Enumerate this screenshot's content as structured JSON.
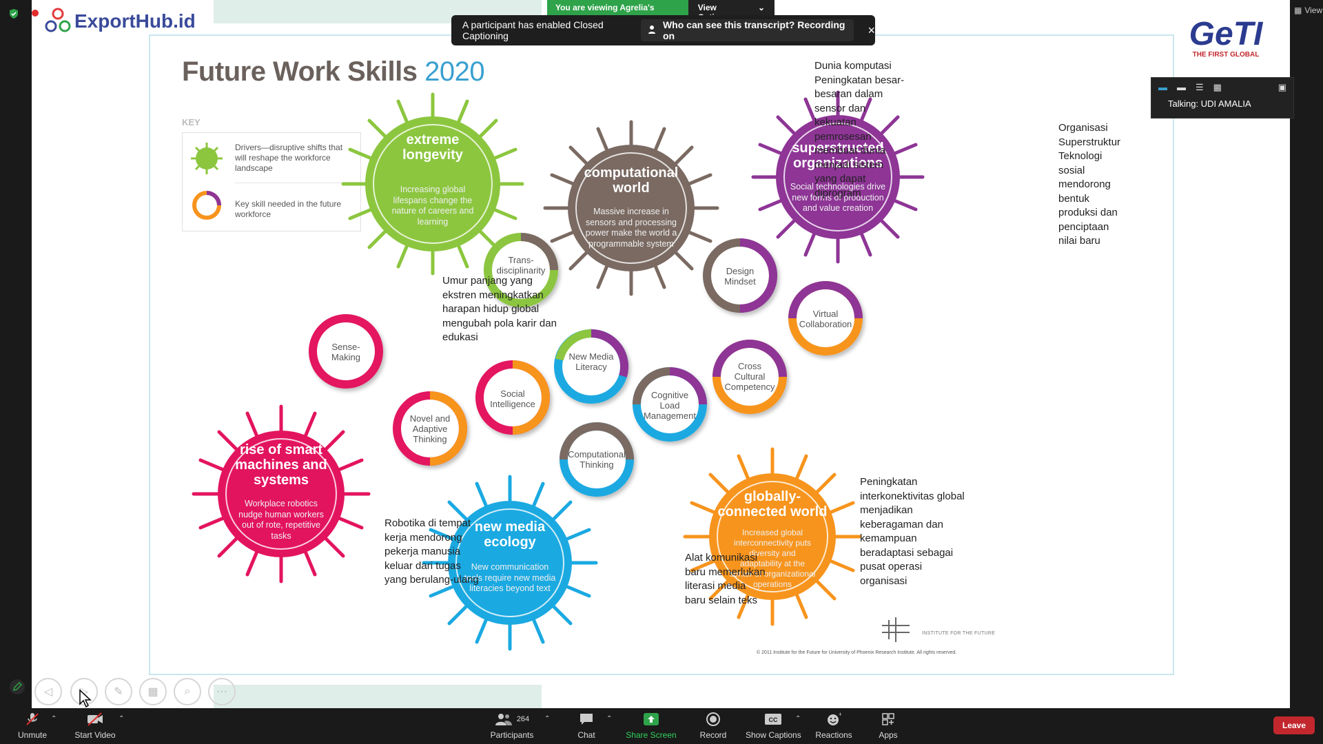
{
  "share_banner": {
    "viewing": "You are viewing Agrelia's screen",
    "view_options": "View Options"
  },
  "cc_banner": {
    "message": "A participant has enabled Closed Captioning",
    "question": "Who can see this transcript? Recording on",
    "close": "×"
  },
  "view_button": "View",
  "talk_panel": {
    "talking": "Talking: UDI AMALIA"
  },
  "logos": {
    "exporthub": "ExportHub.id",
    "geti": "GeTI",
    "geti_sub": "THE FIRST GLOBAL"
  },
  "slide": {
    "title": "Future Work Skills",
    "title_year": "2020",
    "key": {
      "title": "KEY",
      "driver_text": "Drivers—disruptive shifts that will reshape the workforce landscape",
      "skill_text": "Key skill needed in the future workforce"
    },
    "drivers": {
      "longevity": {
        "title": "extreme longevity",
        "desc": "Increasing global lifespans change the nature of careers and learning",
        "color": "#8cc63f"
      },
      "computational": {
        "title": "computational world",
        "desc": "Massive increase in sensors and processing power make the world a programmable system",
        "color": "#7a6a62"
      },
      "superstructed": {
        "title": "superstructed organizations",
        "desc": "Social technologies drive new forms of production and value creation",
        "color": "#8e3596"
      },
      "smart_machines": {
        "title": "rise of smart machines and systems",
        "desc": "Workplace robotics nudge human workers out of rote, repetitive tasks",
        "color": "#e3145e"
      },
      "new_media": {
        "title": "new media ecology",
        "desc": "New communication tools require new media literacies beyond text",
        "color": "#1ba9e1"
      },
      "globally": {
        "title": "globally-connected world",
        "desc": "Increased global interconnectivity puts diversity and adaptability at the center of organizational operations",
        "color": "#f7941d"
      }
    },
    "skills": {
      "trans": "Trans-disciplinarity",
      "sense": "Sense-Making",
      "social": "Social Intelligence",
      "novel": "Novel and Adaptive Thinking",
      "newmedia": "New Media Literacy",
      "cognitive": "Cognitive Load Management",
      "comp_thinking": "Computational Thinking",
      "design": "Design Mindset",
      "virtual": "Virtual Collaboration",
      "cross": "Cross Cultural Competency"
    },
    "notes": {
      "komputasi": "Dunia komputasi\nPeningkatan besar-\nbesaran dalam\nsensor dan\nkekuatan\npemrosesan\nmembuat dunia\nmenjadi sistem\nyang dapat\ndiprogram",
      "organisasi": "Organisasi\nSuperstruktur\nTeknologi\nsosial\nmendorong\nbentuk\nproduksi dan\npenciptaan\nnilai baru",
      "umur": "Umur panjang yang\nekstren meningkatkan\nharapan hidup global\nmengubah pola karir dan\nedukasi",
      "robotika": "Robotika di tempat\nkerja mendorong\npekerja manusia\nkeluar dari tugas\nyang berulang-ulang",
      "alat": "Alat komunikasi\nbaru memerlukan\nliterasi media\nbaru selain teks",
      "peningkatan": "Peningkatan\ninterkonektivitas global\nmenjadikan\nkeberagaman dan\nkemampuan\nberadaptasi sebagai\npusat operasi\norganisasi"
    },
    "iftf": "INSTITUTE FOR THE FUTURE",
    "copyright": "© 2011 Institute for the Future for University of Phoenix Research Institute. All rights reserved."
  },
  "toolbar": {
    "unmute": "Unmute",
    "start_video": "Start Video",
    "participants": "Participants",
    "participants_count": "264",
    "chat": "Chat",
    "share_screen": "Share Screen",
    "record": "Record",
    "show_captions": "Show Captions",
    "reactions": "Reactions",
    "apps": "Apps",
    "leave": "Leave"
  }
}
